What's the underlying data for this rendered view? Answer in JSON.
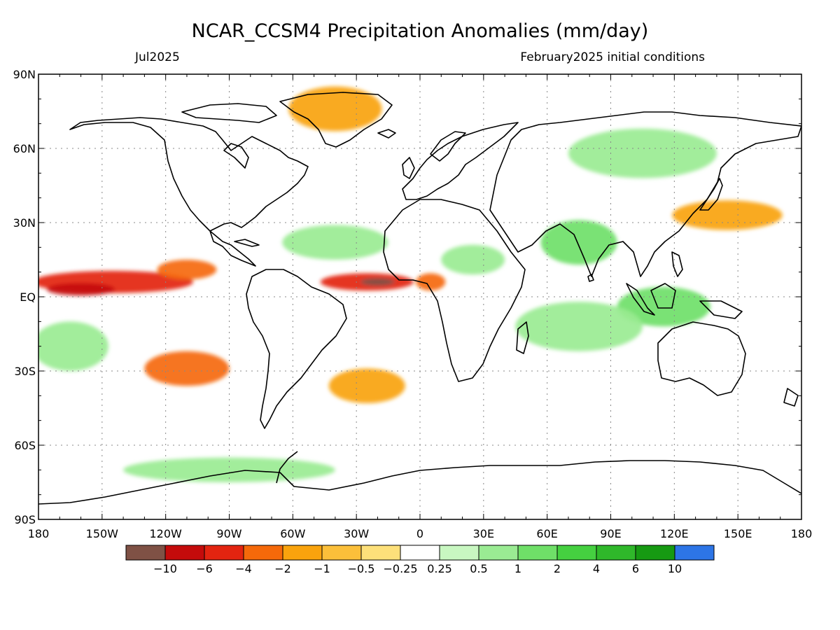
{
  "header": {
    "title": "NCAR_CCSM4 Precipitation Anomalies (mm/day)",
    "valid_month": "Jul2025",
    "init_conditions": "February2025 initial conditions"
  },
  "axes": {
    "lat_labels": [
      "90N",
      "60N",
      "30N",
      "EQ",
      "30S",
      "60S",
      "90S"
    ],
    "lon_labels": [
      "180",
      "150W",
      "120W",
      "90W",
      "60W",
      "30W",
      "0",
      "30E",
      "60E",
      "90E",
      "120E",
      "150E",
      "180"
    ]
  },
  "colorbar": {
    "labels": [
      "-10",
      "-6",
      "-4",
      "-2",
      "-1",
      "-0.5",
      "-0.25",
      "0.25",
      "0.5",
      "1",
      "2",
      "4",
      "6",
      "10"
    ],
    "colors": [
      "#7f5145",
      "#c40b0b",
      "#e32410",
      "#f5690a",
      "#f9a30d",
      "#fbbf3a",
      "#fde07a",
      "#ffffff",
      "#c8f7c1",
      "#9aeb93",
      "#6fdf68",
      "#45d040",
      "#2fb82a",
      "#169a12",
      "#2d75e6"
    ]
  },
  "map": {
    "lon_range": [
      -180,
      180
    ],
    "lat_range": [
      -90,
      90
    ],
    "features": [
      {
        "name": "itcz-pacific-dry",
        "lon": -145,
        "lat": 6,
        "rx": 38,
        "ry": 4.5,
        "level": "-4"
      },
      {
        "name": "itcz-pacific-core",
        "lon": -160,
        "lat": 3,
        "rx": 16,
        "ry": 2.5,
        "level": "-6"
      },
      {
        "name": "east-pacific-dry",
        "lon": -110,
        "lat": 11,
        "rx": 14,
        "ry": 4,
        "level": "-2"
      },
      {
        "name": "atlantic-itcz-dry",
        "lon": -25,
        "lat": 6,
        "rx": 22,
        "ry": 3.5,
        "level": "-4"
      },
      {
        "name": "atlantic-itcz-core",
        "lon": -20,
        "lat": 6,
        "rx": 8,
        "ry": 1.5,
        "level": "-10"
      },
      {
        "name": "gulf-guinea-dry",
        "lon": 5,
        "lat": 6,
        "rx": 7,
        "ry": 3.5,
        "level": "-2"
      },
      {
        "name": "se-pacific-dry",
        "lon": -110,
        "lat": -29,
        "rx": 20,
        "ry": 7,
        "level": "-2"
      },
      {
        "name": "s-atlantic-dry",
        "lon": -25,
        "lat": -36,
        "rx": 18,
        "ry": 7,
        "level": "-1"
      },
      {
        "name": "nw-pacific-dry",
        "lon": 145,
        "lat": 33,
        "rx": 26,
        "ry": 6,
        "level": "-1"
      },
      {
        "name": "greenland-dry",
        "lon": -40,
        "lat": 76,
        "rx": 22,
        "ry": 9,
        "level": "-1"
      },
      {
        "name": "maritime-wet",
        "lon": 115,
        "lat": -4,
        "rx": 22,
        "ry": 8,
        "level": "1"
      },
      {
        "name": "indian-ocean-wet",
        "lon": 75,
        "lat": -12,
        "rx": 30,
        "ry": 10,
        "level": "0.5"
      },
      {
        "name": "india-wet",
        "lon": 75,
        "lat": 22,
        "rx": 18,
        "ry": 9,
        "level": "1"
      },
      {
        "name": "siberia-wet",
        "lon": 105,
        "lat": 58,
        "rx": 35,
        "ry": 10,
        "level": "0.5"
      },
      {
        "name": "south-pacific-wet",
        "lon": -165,
        "lat": -20,
        "rx": 18,
        "ry": 10,
        "level": "0.5"
      },
      {
        "name": "southern-ocean-wet",
        "lon": -90,
        "lat": -70,
        "rx": 50,
        "ry": 5,
        "level": "0.5"
      },
      {
        "name": "n-atlantic-wet",
        "lon": -40,
        "lat": 22,
        "rx": 25,
        "ry": 7,
        "level": "0.5"
      },
      {
        "name": "central-africa-wet",
        "lon": 25,
        "lat": 15,
        "rx": 15,
        "ry": 6,
        "level": "0.5"
      }
    ]
  }
}
